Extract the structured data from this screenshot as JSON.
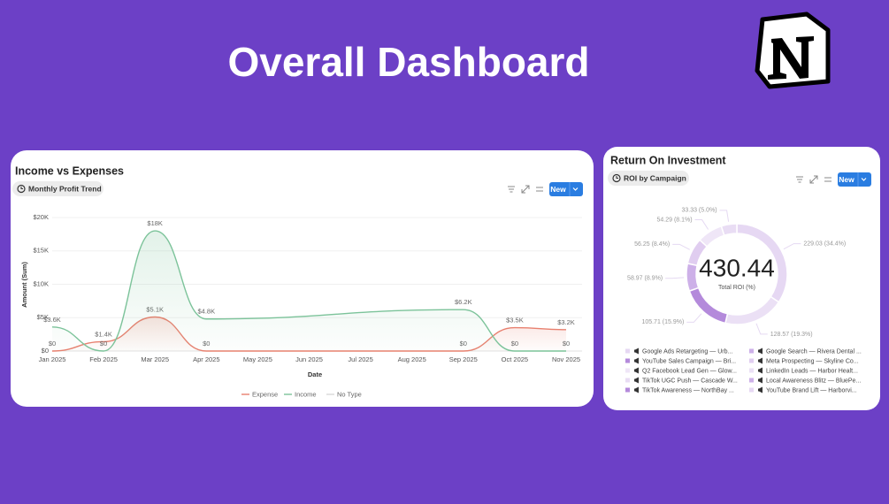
{
  "header": {
    "title": "Overall Dashboard"
  },
  "chart_data": [
    {
      "type": "line",
      "title": "Income vs Expenses",
      "view": "Monthly Profit Trend",
      "button": "New",
      "x": [
        "Jan 2025",
        "Feb 2025",
        "Mar 2025",
        "Apr 2025",
        "Sep 2025",
        "Oct 2025",
        "Nov 2025"
      ],
      "xticks": [
        "Jan 2025",
        "Feb 2025",
        "Mar 2025",
        "Apr 2025",
        "May 2025",
        "Jun 2025",
        "Jul 2025",
        "Aug 2025",
        "Sep 2025",
        "Oct 2025",
        "Nov 2025"
      ],
      "xlabel": "Date",
      "ylabel": "Amount (Sum)",
      "ylim": [
        0,
        20000
      ],
      "yticks": [
        {
          "value": 0,
          "label": "$0"
        },
        {
          "value": 5000,
          "label": "$5K"
        },
        {
          "value": 10000,
          "label": "$10K"
        },
        {
          "value": 15000,
          "label": "$15K"
        },
        {
          "value": 20000,
          "label": "$20K"
        }
      ],
      "grid": true,
      "series": [
        {
          "name": "Expense",
          "color": "#e8806f",
          "values": [
            0,
            1400,
            5100,
            0,
            0,
            3500,
            3200
          ],
          "value_labels": [
            "$0",
            "$1.4K",
            "$5.1K",
            "$0",
            "$0",
            "$3.5K",
            "$3.2K"
          ]
        },
        {
          "name": "Income",
          "color": "#7cc39a",
          "values": [
            3600,
            0,
            18000,
            4800,
            6200,
            0,
            0
          ],
          "value_labels": [
            "$3.6K",
            "$0",
            "$18K",
            "$4.8K",
            "$6.2K",
            "$0",
            "$0"
          ]
        },
        {
          "name": "No Type",
          "color": "#d9d9d9",
          "values": [
            null,
            null,
            null,
            null,
            null,
            null,
            null
          ]
        }
      ]
    },
    {
      "type": "pie",
      "title": "Return On Investment",
      "view": "ROI by Campaign",
      "button": "New",
      "center_value": "430.44",
      "center_label": "Total ROI (%)",
      "values": [
        229.03,
        128.57,
        105.71,
        58.97,
        56.25,
        54.29,
        33.33
      ],
      "value_labels": [
        "229.03 (34.4%)",
        "128.57 (19.3%)",
        "105.71 (15.9%)",
        "58.97 (8.9%)",
        "56.25 (8.4%)",
        "54.29 (8.1%)",
        "33.33 (5.0%)"
      ],
      "colors": [
        "#e6d8f3",
        "#ebe0f5",
        "#b48adb",
        "#cdb0e8",
        "#e0cdf0",
        "#efe6f7",
        "#e9ddf4"
      ],
      "legend": [
        {
          "name": "Google Ads Retargeting — Urb...",
          "color": "#e6d8f3"
        },
        {
          "name": "Google Search — Rivera Dental ...",
          "color": "#cdb0e8"
        },
        {
          "name": "YouTube Sales Campaign — Bri...",
          "color": "#b48adb"
        },
        {
          "name": "Meta Prospecting — Skyline Co...",
          "color": "#e0cdf0"
        },
        {
          "name": "Q2 Facebook Lead Gen — Glow...",
          "color": "#efe6f7"
        },
        {
          "name": "LinkedIn Leads — Harbor Healt...",
          "color": "#ebe0f5"
        },
        {
          "name": "TikTok UGC Push — Cascade W...",
          "color": "#e9ddf4"
        },
        {
          "name": "Local Awareness Blitz — BluePe...",
          "color": "#cdb0e8"
        },
        {
          "name": "TikTok Awareness — NorthBay ...",
          "color": "#b48adb"
        },
        {
          "name": "YouTube Brand Lift — Harborvi...",
          "color": "#e6d8f3"
        }
      ]
    }
  ]
}
